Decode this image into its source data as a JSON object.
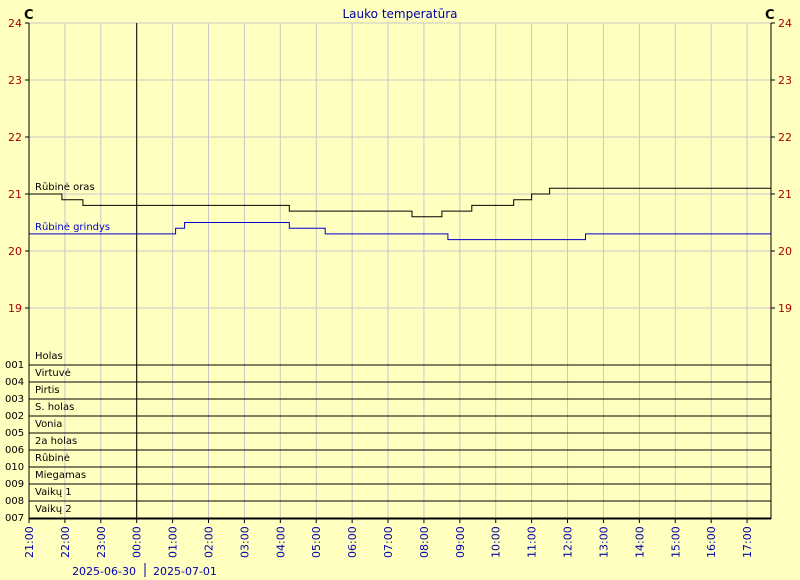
{
  "chart_data": {
    "type": "line",
    "title": "Lauko temperatūra",
    "unit_left": "C",
    "unit_right": "C",
    "yticks": [
      24,
      23,
      22,
      21,
      20,
      19
    ],
    "ylim": [
      18.0,
      24.0
    ],
    "xlim": [
      "2025-06-30 21:00",
      "2025-07-01 17:40"
    ],
    "x_ticks": [
      "21:00",
      "22:00",
      "23:00",
      "00:00",
      "01:00",
      "02:00",
      "03:00",
      "04:00",
      "05:00",
      "06:00",
      "07:00",
      "08:00",
      "09:00",
      "10:00",
      "11:00",
      "12:00",
      "13:00",
      "14:00",
      "15:00",
      "16:00",
      "17:00"
    ],
    "day_boundary": "2025-07-01 00:00",
    "dates": [
      "2025-06-30",
      "2025-07-01"
    ],
    "grid": true,
    "series": [
      {
        "name": "Rūbinė oras",
        "color": "#000000",
        "points": [
          [
            "2025-06-30 21:00",
            21.0
          ],
          [
            "2025-06-30 21:55",
            21.0
          ],
          [
            "2025-06-30 21:55",
            20.9
          ],
          [
            "2025-06-30 22:30",
            20.9
          ],
          [
            "2025-06-30 22:30",
            20.8
          ],
          [
            "2025-06-30 23:00",
            20.8
          ],
          [
            "2025-07-01 00:00",
            20.8
          ],
          [
            "2025-07-01 04:15",
            20.8
          ],
          [
            "2025-07-01 04:15",
            20.7
          ],
          [
            "2025-07-01 07:40",
            20.7
          ],
          [
            "2025-07-01 07:40",
            20.6
          ],
          [
            "2025-07-01 08:30",
            20.6
          ],
          [
            "2025-07-01 08:30",
            20.7
          ],
          [
            "2025-07-01 09:20",
            20.7
          ],
          [
            "2025-07-01 09:20",
            20.8
          ],
          [
            "2025-07-01 10:30",
            20.8
          ],
          [
            "2025-07-01 10:30",
            20.9
          ],
          [
            "2025-07-01 11:00",
            20.9
          ],
          [
            "2025-07-01 11:00",
            21.0
          ],
          [
            "2025-07-01 11:30",
            21.0
          ],
          [
            "2025-07-01 11:30",
            21.1
          ],
          [
            "2025-07-01 17:40",
            21.1
          ],
          [
            "2025-07-01 17:40",
            21.0
          ]
        ]
      },
      {
        "name": "Rūbinė grindys",
        "color": "#0000cc",
        "points": [
          [
            "2025-06-30 21:00",
            20.3
          ],
          [
            "2025-07-01 01:05",
            20.3
          ],
          [
            "2025-07-01 01:05",
            20.4
          ],
          [
            "2025-07-01 01:20",
            20.4
          ],
          [
            "2025-07-01 01:20",
            20.5
          ],
          [
            "2025-07-01 04:15",
            20.5
          ],
          [
            "2025-07-01 04:15",
            20.4
          ],
          [
            "2025-07-01 05:15",
            20.4
          ],
          [
            "2025-07-01 05:15",
            20.3
          ],
          [
            "2025-07-01 08:40",
            20.3
          ],
          [
            "2025-07-01 08:40",
            20.2
          ],
          [
            "2025-07-01 12:30",
            20.2
          ],
          [
            "2025-07-01 12:30",
            20.3
          ],
          [
            "2025-07-01 17:40",
            20.3
          ]
        ]
      }
    ],
    "devices": [
      {
        "code": "001",
        "name": "Holas"
      },
      {
        "code": "004",
        "name": "Virtuvė"
      },
      {
        "code": "003",
        "name": "Pirtis"
      },
      {
        "code": "002",
        "name": "S. holas"
      },
      {
        "code": "005",
        "name": "Vonia"
      },
      {
        "code": "006",
        "name": "2a holas"
      },
      {
        "code": "010",
        "name": "Rūbinė"
      },
      {
        "code": "009",
        "name": "Miegamas"
      },
      {
        "code": "008",
        "name": "Vaikų 1"
      },
      {
        "code": "007",
        "name": "Vaikų 2"
      }
    ]
  }
}
